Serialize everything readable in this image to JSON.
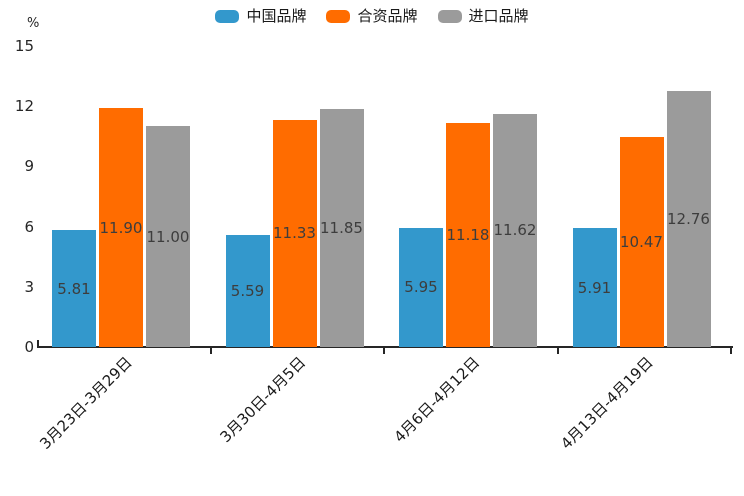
{
  "chart_data": {
    "type": "bar",
    "title": "",
    "ylabel": "%",
    "xlabel": "",
    "categories": [
      "3月23日-3月29日",
      "3月30日-4月5日",
      "4月6日-4月12日",
      "4月13日-4月19日"
    ],
    "series": [
      {
        "name": "中国品牌",
        "color": "#3398cc",
        "values": [
          5.81,
          5.59,
          5.95,
          5.91
        ]
      },
      {
        "name": "合资品牌",
        "color": "#ff6c00",
        "values": [
          11.9,
          11.33,
          11.18,
          10.47
        ]
      },
      {
        "name": "进口品牌",
        "color": "#9b9b9b",
        "values": [
          11.0,
          11.85,
          11.62,
          12.76
        ]
      }
    ],
    "ylim": [
      0,
      15
    ],
    "yticks": [
      0,
      3,
      6,
      9,
      12,
      15
    ],
    "grid": false,
    "legend_position": "top",
    "value_labels": true,
    "value_label_decimals": 2,
    "axis_color": "#262626"
  }
}
